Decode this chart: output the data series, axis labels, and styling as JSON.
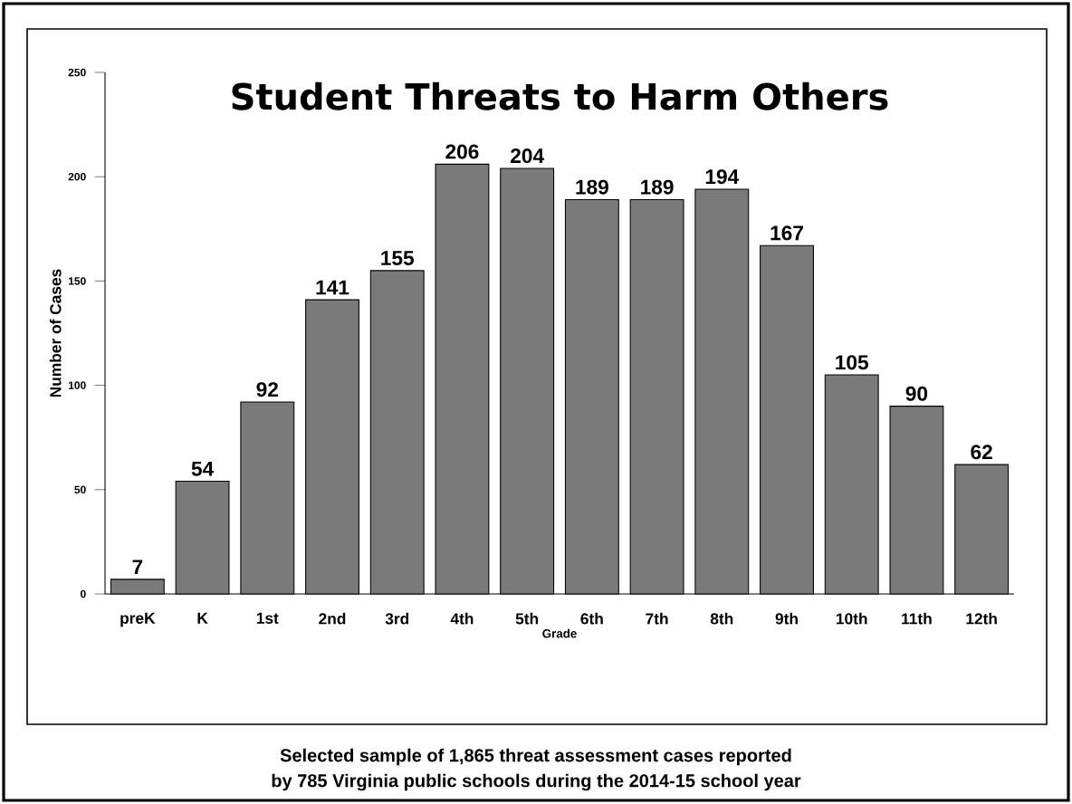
{
  "chart_data": {
    "type": "bar",
    "title": "Student Threats to Harm Others",
    "xlabel": "Grade",
    "ylabel": "Number of Cases",
    "categories": [
      "preK",
      "K",
      "1st",
      "2nd",
      "3rd",
      "4th",
      "5th",
      "6th",
      "7th",
      "8th",
      "9th",
      "10th",
      "11th",
      "12th"
    ],
    "values": [
      7,
      54,
      92,
      141,
      155,
      206,
      204,
      189,
      189,
      194,
      167,
      105,
      90,
      62
    ],
    "color": "#7a7a7a",
    "ylim": [
      0,
      250
    ],
    "yticks": [
      0,
      50,
      100,
      150,
      200,
      250
    ],
    "data_labels": true,
    "grid": false,
    "annotations": [
      "Selected sample of 1,865 threat assessment cases reported",
      "by 785 Virginia public schools during the 2014-15 school year"
    ]
  }
}
